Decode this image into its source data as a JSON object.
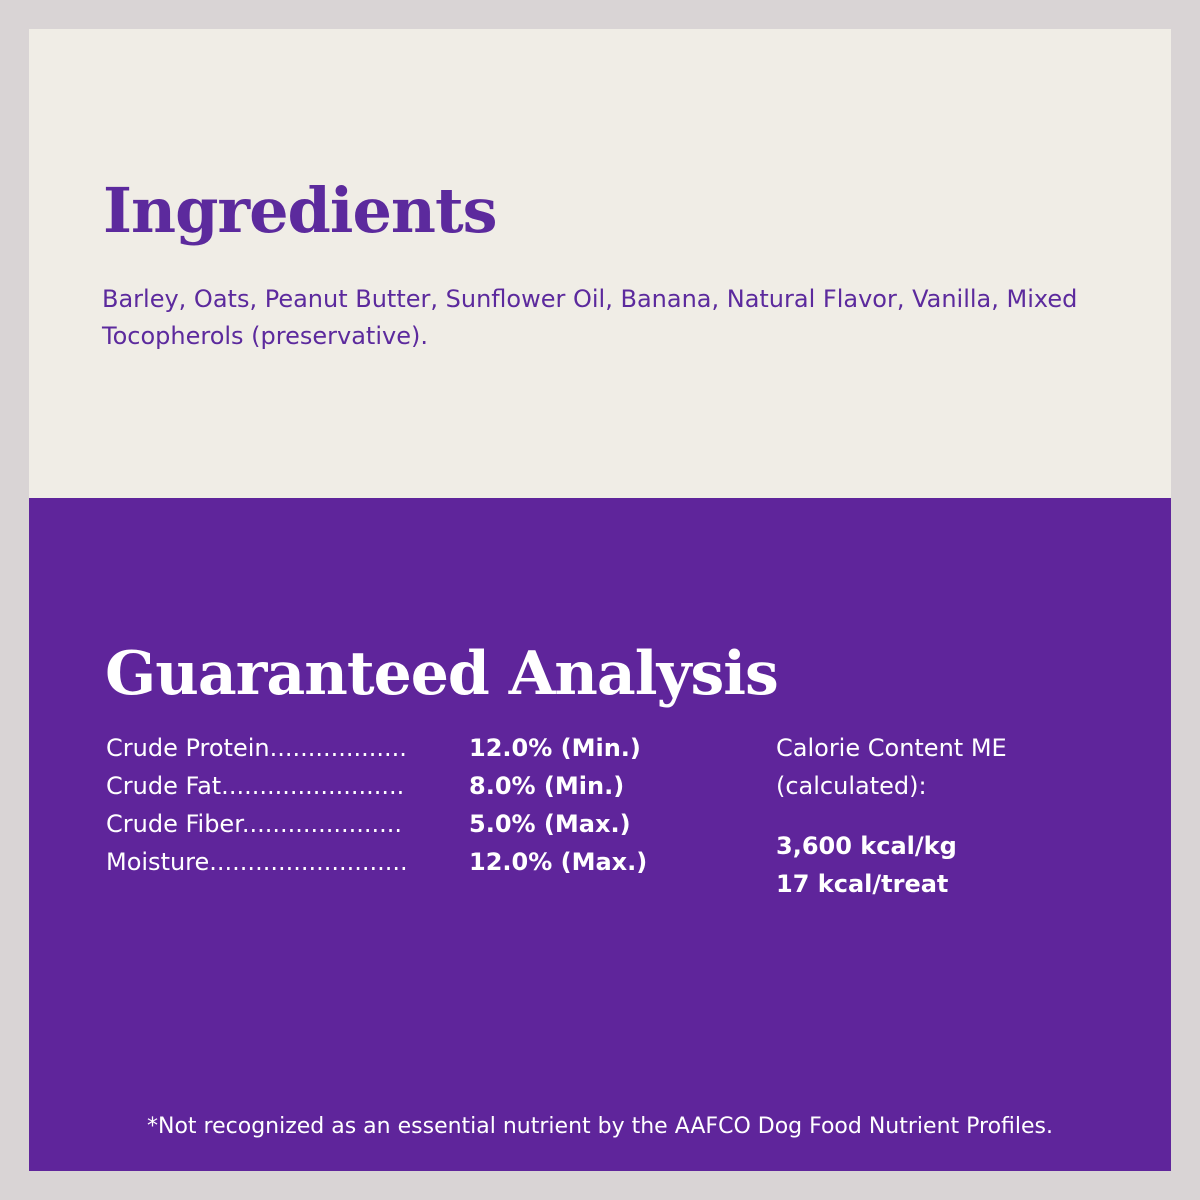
{
  "ingredients": {
    "title": "Ingredients",
    "text": "Barley, Oats, Peanut Butter, Sunflower Oil, Banana, Natural Flavor, Vanilla, Mixed Tocopherols (preservative)."
  },
  "analysis": {
    "title": "Guaranteed Analysis",
    "rows": [
      {
        "label": "Crude  Protein..................",
        "value": "12.0% (Min.)"
      },
      {
        "label": "Crude  Fat........................",
        "value": "8.0% (Min.)"
      },
      {
        "label": "Crude  Fiber.....................",
        "value": "5.0% (Max.)"
      },
      {
        "label": "Moisture..........................",
        "value": "12.0% (Max.)"
      }
    ],
    "calorie": {
      "label_line1": "Calorie Content ME",
      "label_line2": "(calculated):",
      "per_kg": "3,600 kcal/kg",
      "per_treat": "17 kcal/treat"
    }
  },
  "footnote": "*Not recognized as an essential nutrient by the AAFCO Dog Food Nutrient Profiles.",
  "colors": {
    "purple": "#5f259b",
    "cream": "#f0ede6",
    "frame": "#d9d4d5"
  }
}
